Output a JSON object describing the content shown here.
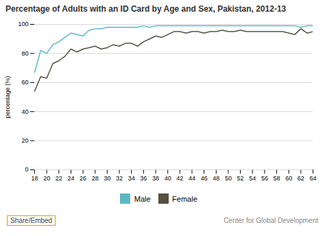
{
  "chart_data": {
    "type": "line",
    "title": "Percentage of Adults with an ID Card by Age and Sex, Pakistan, 2012-13",
    "ylabel": "percentage (%)",
    "x": [
      18,
      19,
      20,
      21,
      22,
      23,
      24,
      25,
      26,
      27,
      28,
      29,
      30,
      31,
      32,
      33,
      34,
      35,
      36,
      37,
      38,
      39,
      40,
      41,
      42,
      43,
      44,
      45,
      46,
      47,
      48,
      49,
      50,
      51,
      52,
      53,
      54,
      55,
      56,
      57,
      58,
      59,
      60,
      61,
      62,
      63,
      64
    ],
    "series": [
      {
        "name": "Male",
        "color": "#5bb8c4",
        "values": [
          67,
          82,
          80,
          86,
          88,
          91,
          94,
          93,
          92,
          96,
          97,
          97,
          98,
          98,
          98,
          98,
          98,
          98,
          99,
          98,
          99,
          99,
          99,
          99,
          99,
          99,
          99,
          99,
          99,
          99,
          99,
          99,
          99,
          99,
          99,
          99,
          99,
          99,
          99,
          99,
          99,
          99,
          99,
          99,
          98,
          99,
          99
        ]
      },
      {
        "name": "Female",
        "color": "#555040",
        "values": [
          54,
          64,
          63,
          73,
          75,
          78,
          83,
          81,
          83,
          84,
          85,
          83,
          84,
          86,
          85,
          87,
          87,
          85,
          88,
          90,
          92,
          91,
          93,
          95,
          95,
          94,
          95,
          95,
          94,
          95,
          95,
          96,
          95,
          95,
          96,
          95,
          95,
          95,
          95,
          95,
          95,
          95,
          94,
          93,
          97,
          94,
          95
        ]
      }
    ],
    "xlim": [
      18,
      64
    ],
    "xticks": [
      18,
      20,
      22,
      24,
      26,
      28,
      30,
      32,
      34,
      36,
      38,
      40,
      42,
      44,
      46,
      48,
      50,
      52,
      54,
      56,
      58,
      60,
      62,
      64
    ],
    "ylim": [
      0,
      100
    ],
    "yticks": [
      0,
      20,
      40,
      60,
      80,
      100
    ],
    "grid": true,
    "legend": "bottom",
    "annotations": [
      "Share/Embed",
      "Center for Global Development"
    ]
  }
}
